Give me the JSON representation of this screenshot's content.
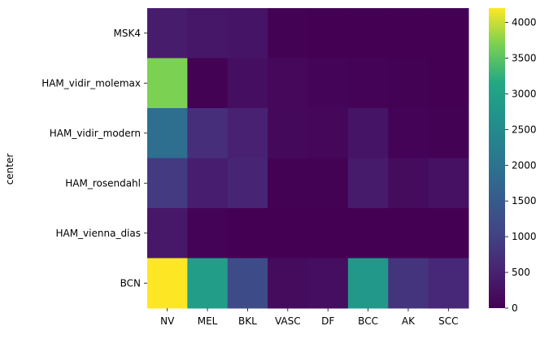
{
  "chart_data": {
    "type": "heatmap",
    "ylabel": "center",
    "xlabel": "",
    "x_categories": [
      "NV",
      "MEL",
      "BKL",
      "VASC",
      "DF",
      "BCC",
      "AK",
      "SCC"
    ],
    "y_categories": [
      "MSK4",
      "HAM_vidir_molemax",
      "HAM_vidir_modern",
      "HAM_rosendahl",
      "HAM_vienna_dias",
      "BCN"
    ],
    "values": [
      [
        420,
        330,
        300,
        10,
        0,
        0,
        0,
        0
      ],
      [
        3700,
        20,
        200,
        110,
        60,
        30,
        20,
        0
      ],
      [
        1900,
        700,
        500,
        120,
        90,
        300,
        30,
        10
      ],
      [
        900,
        450,
        550,
        10,
        20,
        400,
        150,
        250
      ],
      [
        350,
        30,
        0,
        0,
        0,
        0,
        0,
        0
      ],
      [
        4200,
        2900,
        1200,
        150,
        200,
        2800,
        800,
        600
      ]
    ],
    "colorbar": {
      "range": [
        0,
        4200
      ],
      "ticks": [
        0,
        500,
        1000,
        1500,
        2000,
        2500,
        3000,
        3500,
        4000
      ],
      "colormap": "viridis"
    },
    "grid": false
  }
}
